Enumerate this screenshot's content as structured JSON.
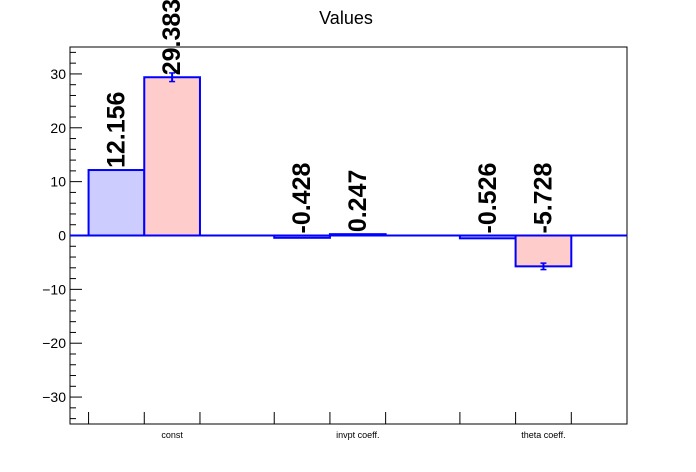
{
  "chart_data": {
    "type": "bar",
    "title": "Values",
    "xlabel": "",
    "ylabel": "",
    "categories": [
      "const",
      "invpt coeff.",
      "theta coeff."
    ],
    "series": [
      {
        "values": [
          12.156,
          -0.428,
          -0.526
        ],
        "errors": [
          0,
          0,
          0
        ],
        "color": "#ccccff"
      },
      {
        "values": [
          29.383,
          0.247,
          -5.728
        ],
        "errors": [
          0.8,
          0,
          0.6
        ],
        "color": "#ffcccc"
      }
    ],
    "data_labels": [
      [
        "12.156",
        "-0.428",
        "-0.526"
      ],
      [
        "29.383",
        "0.247",
        "-5.728"
      ]
    ],
    "ylim": [
      -35,
      35
    ],
    "yticks": [
      -30,
      -20,
      -10,
      0,
      10,
      20,
      30
    ],
    "ytick_labels": [
      "−30",
      "−20",
      "−10",
      "0",
      "10",
      "20",
      "30"
    ],
    "grid": false,
    "colors": {
      "edge": "#0000ff",
      "axis": "#000000"
    }
  }
}
